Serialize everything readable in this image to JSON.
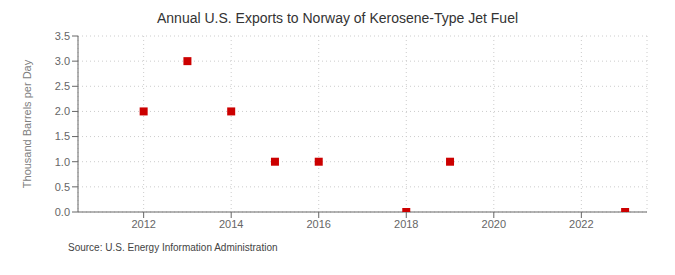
{
  "chart_data": {
    "type": "scatter",
    "title": "Annual U.S. Exports to Norway of Kerosene-Type Jet Fuel",
    "y_label": "Thousand Barrels per Day",
    "annotations": [
      "Source: U.S. Energy Information Administration"
    ],
    "x": [
      2012,
      2013,
      2014,
      2015,
      2016,
      2018,
      2019,
      2023
    ],
    "values": [
      2.0,
      3.0,
      2.0,
      1.0,
      1.0,
      0.0,
      1.0,
      0.0
    ],
    "xlim": [
      2010.5,
      2023.5
    ],
    "ylim": [
      0.0,
      3.5
    ],
    "xticks": [
      2012,
      2014,
      2016,
      2018,
      2020,
      2022
    ],
    "yticks": [
      {
        "value": 0.0,
        "label": "0.0"
      },
      0.5,
      {
        "value": 1.0,
        "label": "1.0"
      },
      1.5,
      {
        "value": 2.0,
        "label": "2.0"
      },
      2.5,
      {
        "value": 3.0,
        "label": "3.0"
      },
      3.5
    ],
    "color": "#cc0000",
    "marker": "square",
    "grid": true
  }
}
